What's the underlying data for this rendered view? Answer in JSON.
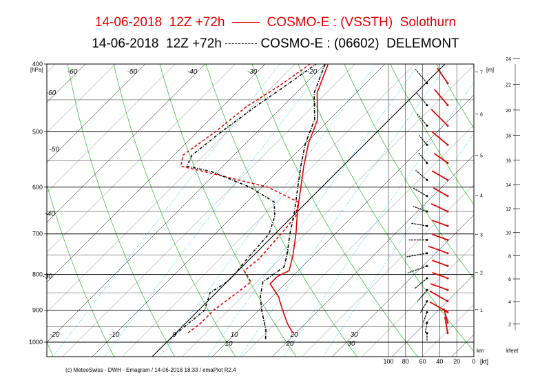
{
  "titles": {
    "line1_left": "14-06-2018  12Z +72h",
    "line1_right": "COSMO-E : (VSSTH)  Solothurn",
    "line2_left": "14-06-2018  12Z +72h",
    "line2_right": "COSMO-E : (06602)  DELEMONT"
  },
  "footer": "(c) MeteoSwiss - DWH - Emagram / 14-06-2018  18:33 / emaPlot R2.4",
  "colors": {
    "solothurn": "#e00000",
    "delemont": "#000000",
    "dry_adiabat": "#40c040",
    "isotherm": "#000000",
    "mixing_ratio": "#40c8f0"
  },
  "chart_data": {
    "type": "emagram",
    "units_label": "[hPa]",
    "pressure_ticks": [
      "400",
      "500",
      "600",
      "700",
      "800",
      "900",
      "1000"
    ],
    "pressure_values": [
      400,
      500,
      600,
      700,
      800,
      900,
      1000
    ],
    "temperature_labels": [
      "-60",
      "-50",
      "-40",
      "-30",
      "-20",
      "-10",
      "0",
      "10",
      "20",
      "30"
    ],
    "wind_axis_label": "[kt]",
    "wind_ticks": [
      "100",
      "80",
      "60",
      "40",
      "20",
      "0"
    ],
    "wind_tick_values": [
      100,
      80,
      60,
      40,
      20,
      0
    ],
    "km_axis_label": "km",
    "km_ticks": [
      "1",
      "2",
      "3",
      "4",
      "5",
      "6",
      "7"
    ],
    "m_axis_label": "[m]",
    "kfeet_axis_label": "kfeet",
    "kfeet_ticks": [
      "2",
      "4",
      "6",
      "8",
      "10",
      "12",
      "14",
      "16",
      "18",
      "20",
      "22",
      "24"
    ],
    "mixing_ratio_labels": [
      "10",
      "20",
      "30"
    ],
    "series": [
      {
        "name": "COSMO-E : (VSSTH)  Solothurn",
        "color": "#e00000",
        "line_style": "solid",
        "temperature": [
          [
            970,
            19.5
          ],
          [
            940,
            17.0
          ],
          [
            900,
            14.0
          ],
          [
            860,
            11.0
          ],
          [
            825,
            7.5
          ],
          [
            805,
            7.5
          ],
          [
            790,
            8.5
          ],
          [
            750,
            6.5
          ],
          [
            700,
            3.5
          ],
          [
            650,
            0.0
          ],
          [
            600,
            -3.5
          ],
          [
            560,
            -6.5
          ],
          [
            520,
            -9.5
          ],
          [
            480,
            -12.0
          ],
          [
            440,
            -16.5
          ],
          [
            400,
            -19.5
          ]
        ],
        "dewpoint": [
          [
            970,
            2.0
          ],
          [
            940,
            2.5
          ],
          [
            900,
            2.5
          ],
          [
            850,
            3.5
          ],
          [
            820,
            4.0
          ],
          [
            790,
            1.0
          ],
          [
            760,
            1.5
          ],
          [
            700,
            1.0
          ],
          [
            660,
            0.5
          ],
          [
            630,
            -1.5
          ],
          [
            600,
            -9.0
          ],
          [
            575,
            -20.0
          ],
          [
            560,
            -27.0
          ],
          [
            540,
            -28.5
          ],
          [
            500,
            -27.0
          ],
          [
            460,
            -26.0
          ],
          [
            430,
            -24.0
          ],
          [
            400,
            -22.5
          ]
        ],
        "wind_kt": [
          20,
          18,
          25,
          25,
          22,
          20,
          20,
          25,
          20,
          20,
          22,
          20,
          22,
          20,
          25,
          28,
          25,
          22
        ],
        "wind_dir_deg": [
          350,
          345,
          300,
          300,
          290,
          290,
          290,
          290,
          290,
          290,
          295,
          300,
          300,
          305,
          310,
          315,
          320,
          325
        ]
      },
      {
        "name": "COSMO-E : (06602)  DELEMONT",
        "color": "#000000",
        "line_style": "dash-dot",
        "temperature": [
          [
            990,
            16.0
          ],
          [
            960,
            14.5
          ],
          [
            900,
            10.5
          ],
          [
            860,
            8.0
          ],
          [
            820,
            6.0
          ],
          [
            800,
            6.5
          ],
          [
            780,
            7.0
          ],
          [
            750,
            5.5
          ],
          [
            700,
            2.5
          ],
          [
            650,
            -0.5
          ],
          [
            600,
            -4.0
          ],
          [
            560,
            -7.0
          ],
          [
            520,
            -10.0
          ],
          [
            480,
            -12.5
          ],
          [
            440,
            -17.0
          ],
          [
            400,
            -20.0
          ]
        ],
        "dewpoint": [
          [
            990,
            0.0
          ],
          [
            940,
            0.5
          ],
          [
            900,
            1.0
          ],
          [
            850,
            -1.0
          ],
          [
            820,
            0.0
          ],
          [
            800,
            0.0
          ],
          [
            760,
            -0.5
          ],
          [
            700,
            -1.0
          ],
          [
            660,
            -3.0
          ],
          [
            630,
            -5.5
          ],
          [
            600,
            -12.0
          ],
          [
            570,
            -21.0
          ],
          [
            560,
            -26.0
          ],
          [
            540,
            -27.0
          ],
          [
            500,
            -26.0
          ],
          [
            460,
            -24.5
          ],
          [
            430,
            -23.0
          ],
          [
            400,
            -21.5
          ]
        ],
        "wind_kt": [
          10,
          12,
          14,
          16,
          18,
          20,
          25,
          25,
          22,
          20,
          18,
          20,
          18,
          16,
          15,
          18,
          20,
          22
        ],
        "wind_dir_deg": [
          180,
          190,
          200,
          210,
          220,
          230,
          250,
          260,
          270,
          280,
          290,
          300,
          310,
          320,
          320,
          320,
          320,
          320
        ]
      }
    ],
    "grid": true,
    "background_lines": [
      "isotherms",
      "dry_adiabats",
      "mixing_ratio",
      "isobars"
    ]
  }
}
